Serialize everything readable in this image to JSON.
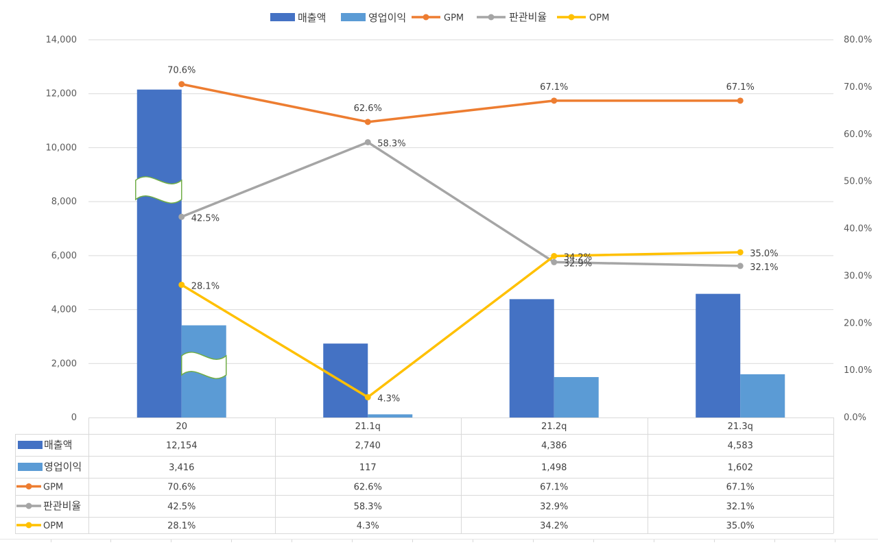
{
  "chart_data": {
    "type": "bar",
    "categories": [
      "20",
      "21.1q",
      "21.2q",
      "21.3q"
    ],
    "series": [
      {
        "name": "매출액",
        "kind": "bar",
        "axis": "left",
        "color": "#4472C4",
        "values": [
          12154,
          2740,
          4386,
          4583
        ],
        "labels": [
          "12,154",
          "2,740",
          "4,386",
          "4,583"
        ]
      },
      {
        "name": "영업이익",
        "kind": "bar",
        "axis": "left",
        "color": "#5B9BD5",
        "values": [
          3416,
          117,
          1498,
          1602
        ],
        "labels": [
          "3,416",
          "117",
          "1,498",
          "1,602"
        ]
      },
      {
        "name": "GPM",
        "kind": "line",
        "axis": "right",
        "color": "#ED7D31",
        "values": [
          70.6,
          62.6,
          67.1,
          67.1
        ],
        "labels": [
          "70.6%",
          "62.6%",
          "67.1%",
          "67.1%"
        ]
      },
      {
        "name": "판관비율",
        "kind": "line",
        "axis": "right",
        "color": "#A5A5A5",
        "values": [
          42.5,
          58.3,
          32.9,
          32.1
        ],
        "labels": [
          "42.5%",
          "58.3%",
          "32.9%",
          "32.1%"
        ]
      },
      {
        "name": "OPM",
        "kind": "line",
        "axis": "right",
        "color": "#FFC000",
        "values": [
          28.1,
          4.3,
          34.2,
          35.0
        ],
        "labels": [
          "28.1%",
          "4.3%",
          "34.2%",
          "35.0%"
        ]
      }
    ],
    "y_left": {
      "min": 0,
      "max": 14000,
      "ticks": [
        "0",
        "2,000",
        "4,000",
        "6,000",
        "8,000",
        "10,000",
        "12,000",
        "14,000"
      ]
    },
    "y_right": {
      "min": 0,
      "max": 80,
      "ticks": [
        "0.0%",
        "10.0%",
        "20.0%",
        "30.0%",
        "40.0%",
        "50.0%",
        "60.0%",
        "70.0%",
        "80.0%"
      ]
    },
    "axis_break": true,
    "grid": true,
    "legend_position": "top",
    "data_table": true
  }
}
